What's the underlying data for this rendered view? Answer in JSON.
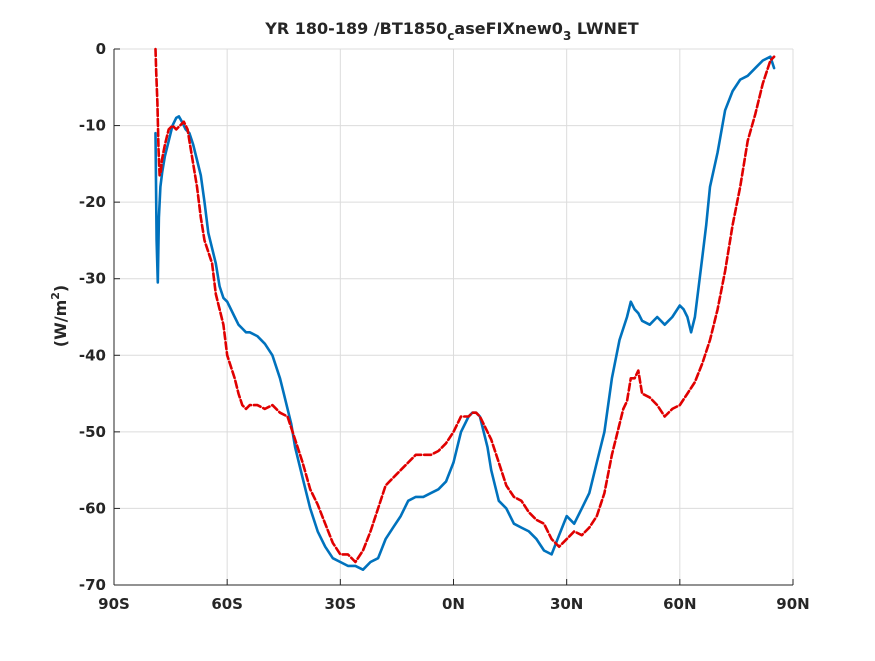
{
  "chart_data": {
    "type": "line",
    "title": {
      "prefix": "YR 180-189 /BT1850",
      "sub1": "c",
      "mid": "aseFIXnew0",
      "sub2": "3",
      "suffix": " LWNET"
    },
    "xlabel": "",
    "ylabel": {
      "prefix": "(W/m",
      "sup": "2",
      "suffix": ")"
    },
    "xlim": [
      -90,
      90
    ],
    "ylim": [
      -70,
      0
    ],
    "xticks": [
      {
        "value": -90,
        "label": "90S"
      },
      {
        "value": -60,
        "label": "60S"
      },
      {
        "value": -30,
        "label": "30S"
      },
      {
        "value": 0,
        "label": "0N"
      },
      {
        "value": 30,
        "label": "30N"
      },
      {
        "value": 60,
        "label": "60N"
      },
      {
        "value": 90,
        "label": "90N"
      }
    ],
    "yticks": [
      {
        "value": 0,
        "label": "0"
      },
      {
        "value": -10,
        "label": "-10"
      },
      {
        "value": -20,
        "label": "-20"
      },
      {
        "value": -30,
        "label": "-30"
      },
      {
        "value": -40,
        "label": "-40"
      },
      {
        "value": -50,
        "label": "-50"
      },
      {
        "value": -60,
        "label": "-60"
      },
      {
        "value": -70,
        "label": "-70"
      }
    ],
    "grid": true,
    "series": [
      {
        "color": "#0072bd",
        "style": "solid",
        "x": [
          -79,
          -78.7,
          -78.4,
          -78.1,
          -77.7,
          -77.2,
          -76.5,
          -75.5,
          -74.5,
          -73.5,
          -72.8,
          -72,
          -71,
          -70,
          -69,
          -68,
          -67,
          -66,
          -65,
          -63,
          -62,
          -61,
          -60,
          -58,
          -57,
          -56,
          -55,
          -54,
          -52,
          -50,
          -48,
          -46,
          -45,
          -43,
          -42,
          -40,
          -38,
          -36,
          -34,
          -32,
          -30,
          -28,
          -26,
          -24,
          -22,
          -20,
          -18,
          -16,
          -14,
          -12,
          -10,
          -8,
          -6,
          -4,
          -2,
          0,
          2,
          4,
          5,
          6,
          7,
          8,
          9,
          10,
          11,
          12,
          14,
          16,
          18,
          20,
          22,
          24,
          26,
          28,
          30,
          32,
          34,
          36,
          38,
          40,
          42,
          44,
          46,
          47,
          48,
          49,
          50,
          52,
          54,
          56,
          58,
          60,
          61,
          62,
          63,
          64,
          65,
          66,
          67,
          68,
          70,
          72,
          74,
          76,
          78,
          80,
          82,
          84,
          85
        ],
        "y": [
          -11,
          -25,
          -30.5,
          -22,
          -18,
          -16,
          -14,
          -12,
          -10,
          -9,
          -8.8,
          -9.5,
          -10.5,
          -11,
          -12.5,
          -14.5,
          -16.5,
          -20,
          -24,
          -28,
          -31,
          -32.5,
          -33,
          -35,
          -36,
          -36.5,
          -37,
          -37,
          -37.5,
          -38.5,
          -40,
          -43,
          -45,
          -49,
          -52,
          -56,
          -60,
          -63,
          -65,
          -66.5,
          -67,
          -67.5,
          -67.5,
          -68,
          -67,
          -66.5,
          -64,
          -62.5,
          -61,
          -59,
          -58.5,
          -58.5,
          -58,
          -57.5,
          -56.5,
          -54,
          -50,
          -48,
          -47.5,
          -47.5,
          -48,
          -50,
          -52,
          -55,
          -57,
          -59,
          -60,
          -62,
          -62.5,
          -63,
          -64,
          -65.5,
          -66,
          -63.5,
          -61,
          -62,
          -60,
          -58,
          -54,
          -50,
          -43,
          -38,
          -35,
          -33,
          -34,
          -34.5,
          -35.5,
          -36,
          -35,
          -36,
          -35,
          -33.5,
          -34,
          -35,
          -37,
          -35,
          -31,
          -27,
          -23,
          -18,
          -13.5,
          -8,
          -5.5,
          -4,
          -3.5,
          -2.5,
          -1.5,
          -1,
          -2.5
        ]
      },
      {
        "color": "#e00000",
        "style": "dashed",
        "x": [
          -79,
          -78.8,
          -78.5,
          -78.2,
          -77.9,
          -77.6,
          -77.3,
          -76.5,
          -75.5,
          -74.5,
          -73.5,
          -72.5,
          -71.5,
          -70.5,
          -70,
          -69,
          -68,
          -67,
          -66,
          -65,
          -64,
          -63,
          -62,
          -61,
          -60,
          -58,
          -57,
          -56,
          -55,
          -54,
          -52,
          -50,
          -48,
          -46,
          -44,
          -42,
          -40,
          -38,
          -36,
          -34,
          -32,
          -30,
          -28,
          -26,
          -24,
          -22,
          -20,
          -18,
          -16,
          -14,
          -12,
          -10,
          -8,
          -6,
          -4,
          -2,
          0,
          2,
          4,
          5,
          6,
          7,
          8,
          10,
          12,
          14,
          16,
          18,
          20,
          22,
          24,
          26,
          28,
          30,
          32,
          34,
          36,
          38,
          40,
          42,
          44,
          45,
          46,
          47,
          48,
          49,
          50,
          52,
          54,
          56,
          58,
          60,
          62,
          64,
          66,
          68,
          70,
          72,
          74,
          76,
          78,
          80,
          82,
          84,
          85
        ],
        "y": [
          0,
          -3,
          -7,
          -13,
          -16.5,
          -16,
          -14.5,
          -12.5,
          -10.5,
          -10,
          -10.5,
          -10,
          -9.5,
          -10.5,
          -12,
          -15,
          -18,
          -22,
          -25,
          -26.5,
          -28,
          -32,
          -34,
          -36,
          -40,
          -43,
          -45,
          -46.5,
          -47,
          -46.5,
          -46.5,
          -47,
          -46.5,
          -47.5,
          -48,
          -51,
          -54,
          -57.5,
          -59.5,
          -62,
          -64.5,
          -66,
          -66,
          -67,
          -65.5,
          -63,
          -60,
          -57,
          -56,
          -55,
          -54,
          -53,
          -53,
          -53,
          -52.5,
          -51.5,
          -50,
          -48,
          -48,
          -47.5,
          -47.5,
          -48,
          -49,
          -51,
          -54,
          -57,
          -58.5,
          -59,
          -60.5,
          -61.5,
          -62,
          -64,
          -65,
          -64,
          -63,
          -63.5,
          -62.5,
          -61,
          -58,
          -53,
          -49,
          -47,
          -46,
          -43,
          -43,
          -42,
          -45,
          -45.5,
          -46.5,
          -48,
          -47,
          -46.5,
          -45,
          -43.5,
          -41,
          -38,
          -34,
          -29,
          -23,
          -18,
          -12,
          -8.5,
          -4.5,
          -1.5,
          -1
        ]
      }
    ]
  }
}
